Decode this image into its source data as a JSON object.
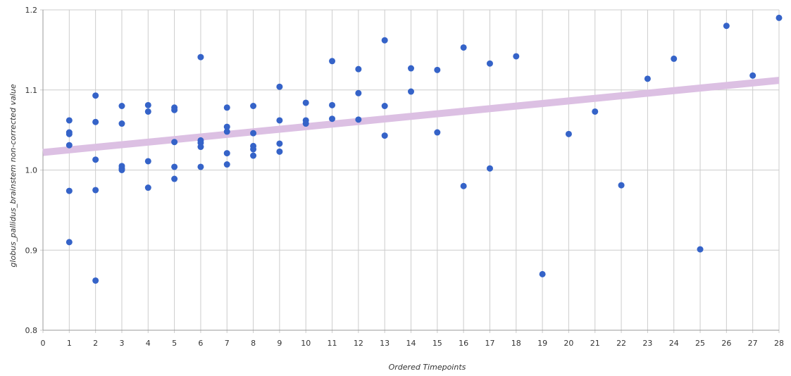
{
  "chart_data": {
    "type": "scatter",
    "xlabel": "Ordered Timepoints",
    "ylabel": "globus_pallidus_brainstem non-corrected value",
    "xlim": [
      0,
      28
    ],
    "ylim": [
      0.8,
      1.2
    ],
    "x_ticks": [
      0,
      1,
      2,
      3,
      4,
      5,
      6,
      7,
      8,
      9,
      10,
      11,
      12,
      13,
      14,
      15,
      16,
      17,
      18,
      19,
      20,
      21,
      22,
      23,
      24,
      25,
      26,
      27,
      28
    ],
    "y_ticks": [
      0.8,
      0.9,
      1.0,
      1.1,
      1.2
    ],
    "y_tick_labels": [
      "0.8",
      "0.9",
      "1.0",
      "1.1",
      "1.2"
    ],
    "grid": {
      "vertical": true,
      "horizontal": true
    },
    "colors": {
      "points": "#3563c8",
      "trend": "#dcc0e3",
      "grid": "#cccccc"
    },
    "trend_line": {
      "x": [
        0,
        28
      ],
      "y": [
        1.022,
        1.112
      ]
    },
    "points": [
      [
        1,
        1.062
      ],
      [
        1,
        1.047
      ],
      [
        1,
        1.045
      ],
      [
        1,
        1.031
      ],
      [
        1,
        0.974
      ],
      [
        1,
        0.91
      ],
      [
        2,
        1.093
      ],
      [
        2,
        1.06
      ],
      [
        2,
        1.013
      ],
      [
        2,
        0.975
      ],
      [
        2,
        0.862
      ],
      [
        3,
        1.08
      ],
      [
        3,
        1.058
      ],
      [
        3,
        1.005
      ],
      [
        3,
        1.002
      ],
      [
        3,
        1.0
      ],
      [
        4,
        1.081
      ],
      [
        4,
        1.073
      ],
      [
        4,
        1.011
      ],
      [
        4,
        0.978
      ],
      [
        5,
        1.078
      ],
      [
        5,
        1.075
      ],
      [
        5,
        1.035
      ],
      [
        5,
        1.004
      ],
      [
        5,
        0.989
      ],
      [
        6,
        1.141
      ],
      [
        6,
        1.037
      ],
      [
        6,
        1.034
      ],
      [
        6,
        1.029
      ],
      [
        6,
        1.004
      ],
      [
        7,
        1.078
      ],
      [
        7,
        1.054
      ],
      [
        7,
        1.048
      ],
      [
        7,
        1.021
      ],
      [
        7,
        1.007
      ],
      [
        8,
        1.08
      ],
      [
        8,
        1.046
      ],
      [
        8,
        1.03
      ],
      [
        8,
        1.026
      ],
      [
        8,
        1.018
      ],
      [
        9,
        1.104
      ],
      [
        9,
        1.062
      ],
      [
        9,
        1.033
      ],
      [
        9,
        1.023
      ],
      [
        10,
        1.084
      ],
      [
        10,
        1.062
      ],
      [
        10,
        1.058
      ],
      [
        11,
        1.136
      ],
      [
        11,
        1.081
      ],
      [
        11,
        1.064
      ],
      [
        12,
        1.126
      ],
      [
        12,
        1.096
      ],
      [
        12,
        1.063
      ],
      [
        13,
        1.162
      ],
      [
        13,
        1.08
      ],
      [
        13,
        1.043
      ],
      [
        14,
        1.127
      ],
      [
        14,
        1.098
      ],
      [
        15,
        1.125
      ],
      [
        15,
        1.047
      ],
      [
        16,
        1.153
      ],
      [
        16,
        0.98
      ],
      [
        17,
        1.133
      ],
      [
        17,
        1.002
      ],
      [
        18,
        1.142
      ],
      [
        19,
        0.87
      ],
      [
        20,
        1.045
      ],
      [
        21,
        1.073
      ],
      [
        22,
        0.981
      ],
      [
        23,
        1.114
      ],
      [
        24,
        1.139
      ],
      [
        25,
        0.901
      ],
      [
        26,
        1.18
      ],
      [
        27,
        1.118
      ],
      [
        28,
        1.19
      ]
    ]
  }
}
